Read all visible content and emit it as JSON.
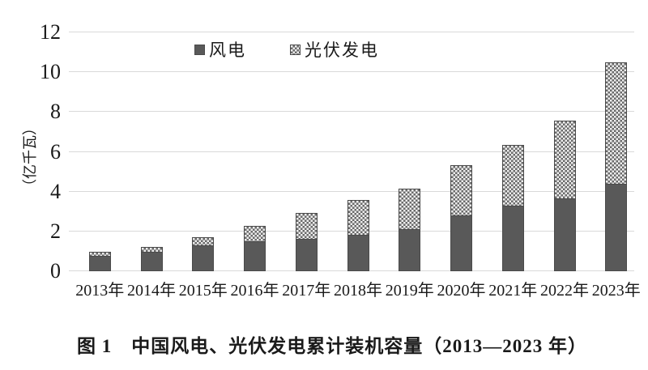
{
  "figure": {
    "caption": "图 1　中国风电、光伏发电累计装机容量（2013—2023 年）"
  },
  "chart_data": {
    "type": "bar",
    "stacked": true,
    "title": "图 1　中国风电、光伏发电累计装机容量（2013—2023 年）",
    "xlabel": "",
    "ylabel": "（亿千瓦）",
    "ylim": [
      0,
      12
    ],
    "y_ticks": [
      0,
      2,
      4,
      6,
      8,
      10,
      12
    ],
    "grid": "horizontal",
    "legend_position": "top-center",
    "categories": [
      "2013年",
      "2014年",
      "2015年",
      "2016年",
      "2017年",
      "2018年",
      "2019年",
      "2020年",
      "2021年",
      "2022年",
      "2023年"
    ],
    "series": [
      {
        "name": "风电",
        "pattern": "solid",
        "values": [
          0.77,
          0.96,
          1.29,
          1.49,
          1.64,
          1.84,
          2.1,
          2.82,
          3.28,
          3.65,
          4.41
        ]
      },
      {
        "name": "光伏发电",
        "pattern": "checker",
        "values": [
          0.19,
          0.28,
          0.43,
          0.78,
          1.3,
          1.74,
          2.04,
          2.53,
          3.06,
          3.93,
          6.09
        ]
      }
    ],
    "totals": [
      0.96,
      1.24,
      1.72,
      2.27,
      2.94,
      3.58,
      4.14,
      5.35,
      6.34,
      7.58,
      10.5
    ],
    "colors": {
      "wind_fill": "#595959",
      "solar_dot": "#6a6a6a",
      "solar_bg": "#ededed",
      "segment_border": "#4a4a4a",
      "gridline": "#d9d9d9",
      "text": "#1a1a1a",
      "background": "#ffffff"
    }
  }
}
